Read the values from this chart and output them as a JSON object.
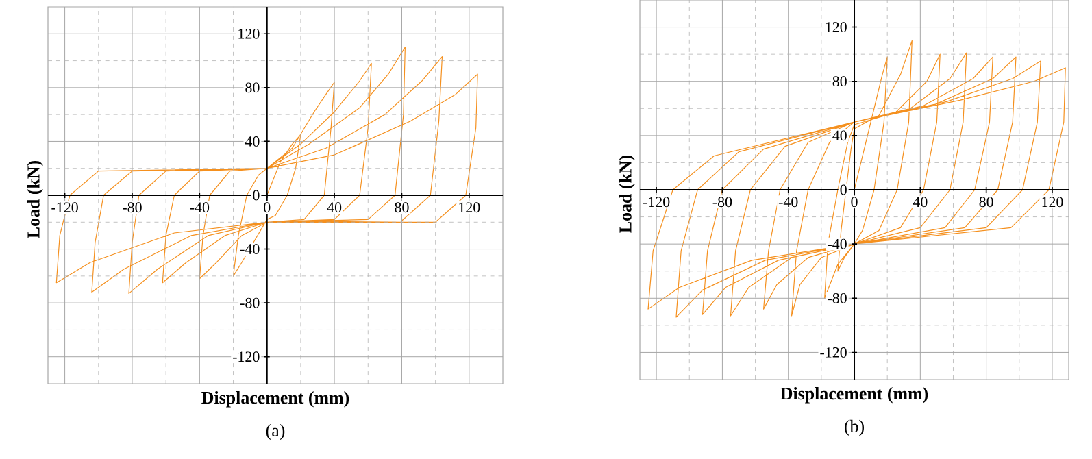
{
  "chart_data": [
    {
      "type": "line",
      "xlabel": "Displacement (mm)",
      "ylabel": "Load (kN)",
      "annotations": [
        "(a)"
      ],
      "xlim": [
        -130,
        140
      ],
      "ylim": [
        -140,
        140
      ],
      "xticks": [
        -120,
        -80,
        -40,
        0,
        40,
        80,
        120
      ],
      "yticks": [
        -120,
        -80,
        -40,
        0,
        40,
        80,
        120
      ],
      "grid": true,
      "marker": "none",
      "line_style": "solid",
      "series": [
        {
          "color": "#f5901e",
          "x": [
            0,
            8,
            15,
            20,
            17,
            12,
            5,
            0,
            -8,
            -15,
            -20,
            -17,
            -12,
            -5,
            0,
            15,
            28,
            35,
            40,
            38,
            34,
            22,
            0,
            -15,
            -30,
            -40,
            -38,
            -34,
            -22,
            0,
            20,
            40,
            55,
            62,
            60,
            55,
            40,
            0,
            -25,
            -48,
            -62,
            -60,
            -55,
            -40,
            0,
            25,
            55,
            72,
            82,
            81,
            76,
            60,
            0,
            -35,
            -65,
            -82,
            -80,
            -76,
            -60,
            0,
            35,
            70,
            92,
            104,
            102,
            97,
            80,
            0,
            -45,
            -85,
            -104,
            -102,
            -97,
            -80,
            0,
            40,
            85,
            112,
            125,
            124,
            118,
            100,
            0,
            -55,
            -105,
            -125,
            -123,
            -117,
            -100,
            0
          ],
          "values": [
            0,
            25,
            38,
            45,
            20,
            0,
            -15,
            -18,
            -35,
            -50,
            -60,
            -30,
            0,
            15,
            20,
            35,
            62,
            75,
            84,
            50,
            0,
            -18,
            -20,
            -30,
            -50,
            -62,
            -30,
            0,
            18,
            20,
            38,
            62,
            85,
            98,
            50,
            0,
            -18,
            -20,
            -30,
            -50,
            -65,
            -30,
            0,
            18,
            20,
            38,
            65,
            90,
            110,
            60,
            0,
            -18,
            -20,
            -30,
            -55,
            -73,
            -35,
            0,
            18,
            20,
            35,
            60,
            85,
            103,
            55,
            0,
            -19,
            -20,
            -30,
            -55,
            -72,
            -35,
            0,
            18,
            20,
            30,
            55,
            75,
            90,
            50,
            0,
            -20,
            -20,
            -28,
            -50,
            -65,
            -30,
            0,
            18,
            20
          ]
        }
      ]
    },
    {
      "type": "line",
      "xlabel": "Displacement (mm)",
      "ylabel": "Load (kN)",
      "annotations": [
        "(b)"
      ],
      "xlim": [
        -130,
        130
      ],
      "ylim": [
        -140,
        140
      ],
      "xticks": [
        -120,
        -80,
        -40,
        0,
        40,
        80,
        120
      ],
      "yticks": [
        -120,
        -80,
        -40,
        0,
        40,
        80,
        120
      ],
      "grid": true,
      "marker": "none",
      "line_style": "solid",
      "series": [
        {
          "color": "#f5901e",
          "x": [
            0,
            10,
            17,
            20,
            18,
            12,
            5,
            0,
            -6,
            -10,
            -8,
            -5,
            -2,
            0,
            15,
            28,
            35,
            33,
            26,
            15,
            0,
            -10,
            -18,
            -16,
            -10,
            -4,
            0,
            25,
            44,
            52,
            50,
            42,
            28,
            0,
            -20,
            -33,
            -38,
            -35,
            -28,
            -15,
            0,
            34,
            58,
            68,
            66,
            58,
            40,
            0,
            -28,
            -47,
            -55,
            -52,
            -45,
            -28,
            0,
            42,
            72,
            84,
            82,
            73,
            55,
            0,
            -38,
            -64,
            -75,
            -72,
            -63,
            -42,
            0,
            49,
            84,
            98,
            96,
            87,
            67,
            0,
            -46,
            -78,
            -92,
            -89,
            -80,
            -55,
            0,
            56,
            96,
            113,
            111,
            102,
            80,
            0,
            -54,
            -92,
            -108,
            -105,
            -95,
            -70,
            0,
            64,
            109,
            128,
            127,
            118,
            95,
            0,
            -62,
            -106,
            -125,
            -122,
            -110,
            -85,
            0
          ],
          "values": [
            0,
            50,
            85,
            98,
            50,
            0,
            -30,
            -40,
            -50,
            -60,
            -30,
            0,
            30,
            45,
            55,
            85,
            110,
            50,
            0,
            -30,
            -40,
            -55,
            -80,
            -40,
            0,
            35,
            48,
            57,
            80,
            100,
            50,
            0,
            -28,
            -40,
            -50,
            -70,
            -93,
            -45,
            0,
            35,
            50,
            60,
            82,
            101,
            50,
            0,
            -28,
            -40,
            -50,
            -70,
            -88,
            -45,
            0,
            35,
            50,
            62,
            82,
            98,
            50,
            0,
            -28,
            -40,
            -50,
            -72,
            -93,
            -45,
            0,
            32,
            50,
            63,
            82,
            98,
            50,
            0,
            -28,
            -40,
            -52,
            -72,
            -92,
            -45,
            0,
            30,
            50,
            65,
            82,
            95,
            50,
            0,
            -28,
            -40,
            -52,
            -74,
            -94,
            -45,
            0,
            28,
            50,
            66,
            80,
            90,
            50,
            0,
            -28,
            -40,
            -52,
            -72,
            -88,
            -45,
            0,
            25,
            50
          ]
        }
      ]
    }
  ]
}
